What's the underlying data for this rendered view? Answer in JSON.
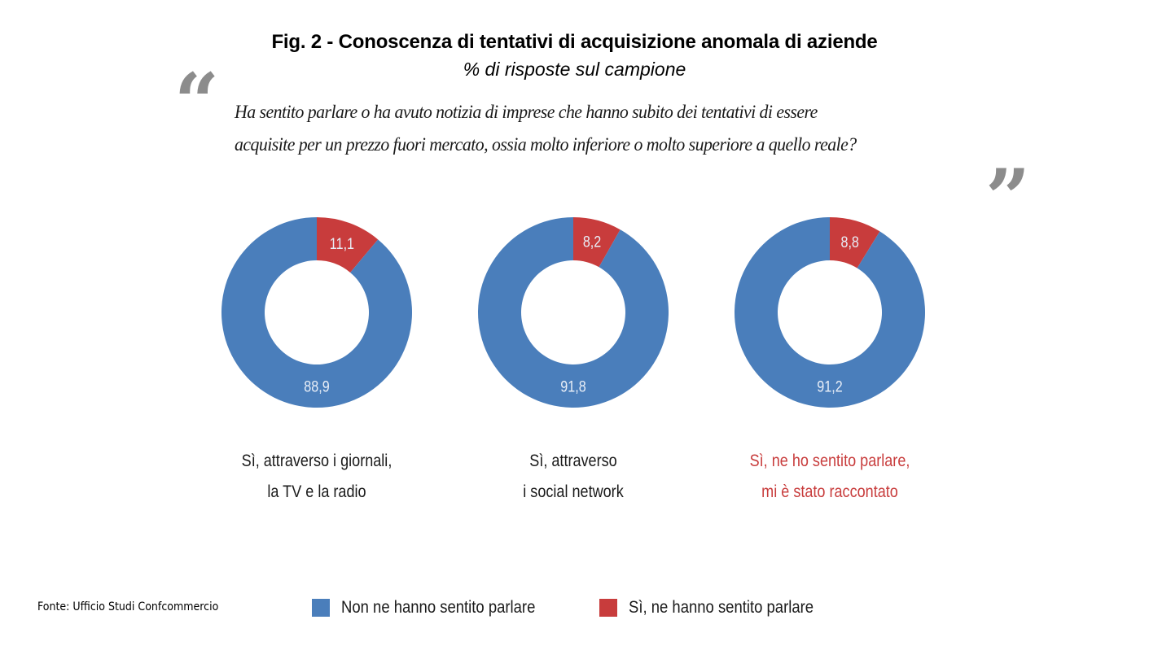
{
  "chart_data": {
    "type": "pie",
    "variant": "donut",
    "title": "Fig. 2 - Conoscenza di tentativi di acquisizione anomala di aziende",
    "subtitle": "% di risposte sul campione",
    "question": "Ha sentito parlare o ha avuto notizia di imprese che hanno subito dei tentativi di essere acquisite per un prezzo fuori mercato, ossia molto inferiore o molto superiore a quello reale?",
    "question_lines": [
      "Ha sentito parlare o ha avuto notizia di imprese che hanno subito dei tentativi di essere",
      "acquisite per un prezzo fuori mercato, ossia molto inferiore o molto superiore a quello reale?"
    ],
    "series": [
      {
        "name": "Non ne hanno sentito parlare",
        "color": "#4a7ebb"
      },
      {
        "name": "Sì, ne hanno sentito parlare",
        "color": "#c83c3c"
      }
    ],
    "charts": [
      {
        "category": "Sì, attraverso i giornali, la TV e la radio",
        "label_lines": [
          "Sì, attraverso i giornali,",
          "la TV e la radio"
        ],
        "label_highlight": false,
        "values": [
          88.9,
          11.1
        ],
        "value_labels": [
          "88,9",
          "11,1"
        ]
      },
      {
        "category": "Sì, attraverso i social network",
        "label_lines": [
          "Sì, attraverso",
          "i social network"
        ],
        "label_highlight": false,
        "values": [
          91.8,
          8.2
        ],
        "value_labels": [
          "91,8",
          "8,2"
        ]
      },
      {
        "category": "Sì, ne ho sentito parlare, mi è stato raccontato",
        "label_lines": [
          "Sì, ne ho sentito parlare,",
          "mi è stato raccontato"
        ],
        "label_highlight": true,
        "values": [
          91.2,
          8.8
        ],
        "value_labels": [
          "91,2",
          "8,8"
        ]
      }
    ],
    "legend_position": "bottom",
    "source": "Fonte: Ufficio Studi Confcommercio",
    "highlight_color": "#c83c3c"
  },
  "decor": {
    "quote_open": "“",
    "quote_close": "”"
  }
}
